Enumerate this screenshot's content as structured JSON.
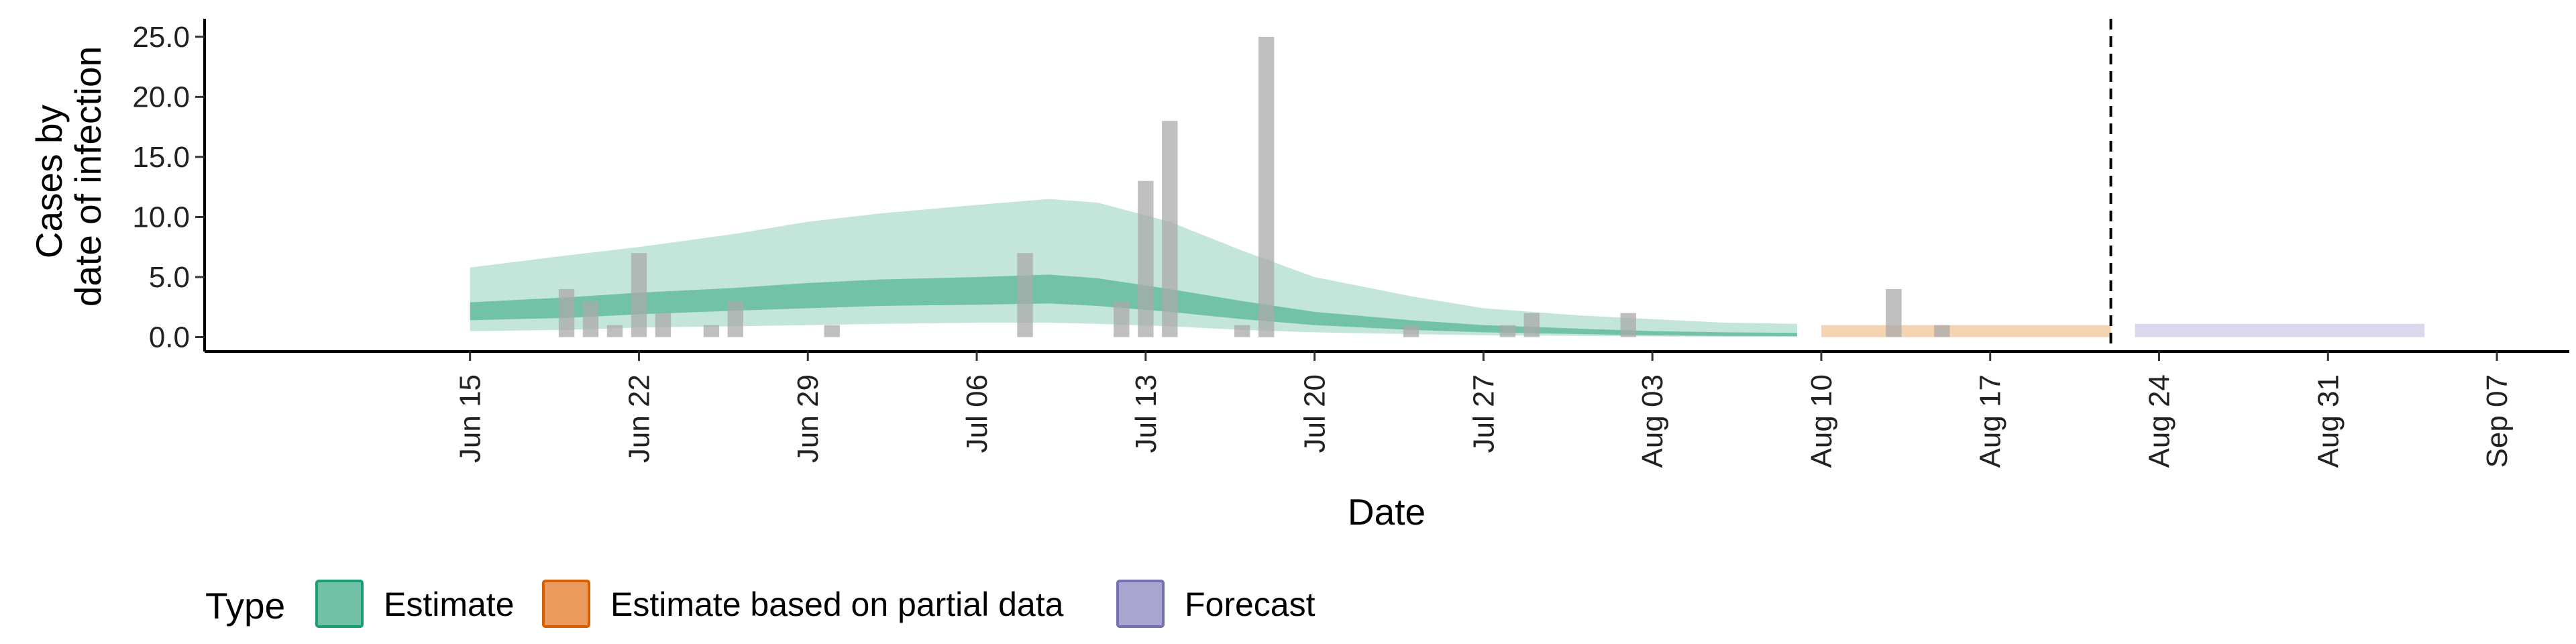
{
  "chart_data": {
    "type": "area",
    "xlabel": "Date",
    "ylabel_lines": [
      "Cases by",
      "date of infection"
    ],
    "x_range": [
      "2020-06-04",
      "2020-09-10"
    ],
    "ylim": [
      -1.2,
      26.5
    ],
    "y_ticks": [
      0,
      5,
      10,
      15,
      20,
      25
    ],
    "y_tick_labels": [
      "0.0",
      "5.0",
      "10.0",
      "15.0",
      "20.0",
      "25.0"
    ],
    "x_ticks": [
      "2020-06-15",
      "2020-06-22",
      "2020-06-29",
      "2020-07-06",
      "2020-07-13",
      "2020-07-20",
      "2020-07-27",
      "2020-08-03",
      "2020-08-10",
      "2020-08-17",
      "2020-08-24",
      "2020-08-31",
      "2020-09-07"
    ],
    "x_tick_labels": [
      "Jun 15",
      "Jun 22",
      "Jun 29",
      "Jul 06",
      "Jul 13",
      "Jul 20",
      "Jul 27",
      "Aug 03",
      "Aug 10",
      "Aug 17",
      "Aug 24",
      "Aug 31",
      "Sep 07"
    ],
    "grid": false,
    "forecast_cutoff": "2020-08-22",
    "legend": {
      "title": "Type",
      "position": "bottom",
      "items": [
        {
          "label": "Estimate",
          "fill": "#71c1a6",
          "stroke": "#1b9e77"
        },
        {
          "label": "Estimate based on partial data",
          "fill": "#eb9b5e",
          "stroke": "#d95f02"
        },
        {
          "label": "Forecast",
          "fill": "#a8a5d1",
          "stroke": "#7570b3"
        }
      ]
    },
    "colors": {
      "estimate_outer": "#c4e5da",
      "estimate_inner": "#72c2a6",
      "partial": "#f5d4b3",
      "forecast": "#d9d8ec",
      "bars": "#aaaaaa"
    },
    "bars": [
      {
        "date": "2020-06-19",
        "value": 4
      },
      {
        "date": "2020-06-20",
        "value": 3
      },
      {
        "date": "2020-06-21",
        "value": 1
      },
      {
        "date": "2020-06-22",
        "value": 7
      },
      {
        "date": "2020-06-23",
        "value": 2
      },
      {
        "date": "2020-06-25",
        "value": 1
      },
      {
        "date": "2020-06-26",
        "value": 3
      },
      {
        "date": "2020-06-30",
        "value": 1
      },
      {
        "date": "2020-07-08",
        "value": 7
      },
      {
        "date": "2020-07-12",
        "value": 3
      },
      {
        "date": "2020-07-13",
        "value": 13
      },
      {
        "date": "2020-07-14",
        "value": 18
      },
      {
        "date": "2020-07-17",
        "value": 1
      },
      {
        "date": "2020-07-18",
        "value": 25
      },
      {
        "date": "2020-07-24",
        "value": 1
      },
      {
        "date": "2020-07-28",
        "value": 1
      },
      {
        "date": "2020-07-29",
        "value": 2
      },
      {
        "date": "2020-08-02",
        "value": 2
      },
      {
        "date": "2020-08-13",
        "value": 4
      },
      {
        "date": "2020-08-15",
        "value": 1
      }
    ],
    "estimate": {
      "dates": [
        "2020-06-15",
        "2020-06-19",
        "2020-06-22",
        "2020-06-26",
        "2020-06-29",
        "2020-07-02",
        "2020-07-06",
        "2020-07-09",
        "2020-07-11",
        "2020-07-14",
        "2020-07-17",
        "2020-07-20",
        "2020-07-24",
        "2020-07-27",
        "2020-07-31",
        "2020-08-03",
        "2020-08-06",
        "2020-08-09"
      ],
      "outer_upper": [
        5.8,
        6.8,
        7.5,
        8.6,
        9.6,
        10.3,
        11.0,
        11.5,
        11.2,
        9.6,
        7.2,
        5.0,
        3.4,
        2.4,
        1.8,
        1.5,
        1.2,
        1.1
      ],
      "outer_lower": [
        0.5,
        0.6,
        0.8,
        0.9,
        1.0,
        1.1,
        1.2,
        1.2,
        1.1,
        0.9,
        0.6,
        0.4,
        0.25,
        0.15,
        0.1,
        0.05,
        0.03,
        0.03
      ],
      "inner_upper": [
        2.9,
        3.3,
        3.7,
        4.1,
        4.5,
        4.8,
        5.0,
        5.2,
        4.9,
        4.0,
        3.0,
        2.1,
        1.4,
        1.0,
        0.7,
        0.5,
        0.4,
        0.35
      ],
      "inner_lower": [
        1.4,
        1.6,
        1.9,
        2.2,
        2.4,
        2.6,
        2.7,
        2.8,
        2.6,
        2.1,
        1.5,
        1.0,
        0.6,
        0.4,
        0.25,
        0.15,
        0.1,
        0.08
      ]
    },
    "partial": {
      "start": "2020-08-10",
      "end": "2020-08-22",
      "lower": 0.0,
      "upper": 1.0
    },
    "forecast": {
      "start": "2020-08-23",
      "end": "2020-09-04",
      "lower": 0.0,
      "upper": 1.1
    }
  }
}
